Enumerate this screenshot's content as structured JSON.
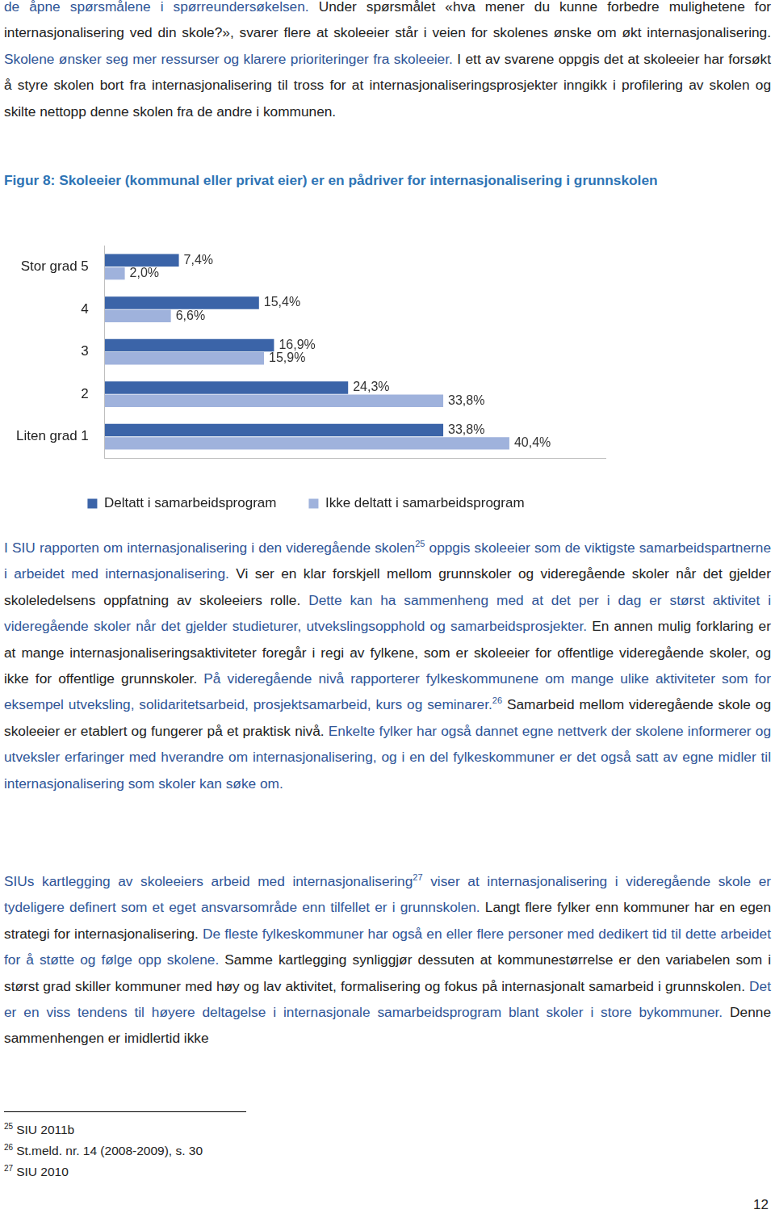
{
  "paragraphs_before": [
    [
      {
        "text": "de åpne spørsmålene i spørreundersøkelsen.",
        "color": "#2f5597"
      },
      {
        "text": " Under spørsmålet «hva mener du kunne forbedre mulighetene for internasjonalisering ved din skole?», svarer flere at skoleeier står i veien for skolenes ønske om økt internasjonalisering.",
        "color": "#222222"
      },
      {
        "text": " Skolene ønsker seg mer ressurser og klarere prioriteringer fra skoleeier.",
        "color": "#2f5597"
      },
      {
        "text": " I ett av svarene oppgis det at skoleeier har forsøkt å styre skolen bort fra internasjonalisering til tross for at internasjonaliseringsprosjekter inngikk i profilering av skolen og skilte nettopp denne skolen fra de andre i kommunen.",
        "color": "#222222"
      }
    ]
  ],
  "chart_data": {
    "type": "bar",
    "title": "Figur 8: Skoleeier (kommunal eller privat eier) er en pådriver for internasjonalisering i grunnskolen",
    "title_color": "#2e74b5",
    "orientation": "horizontal",
    "categories": [
      "Stor grad 5",
      "4",
      "3",
      "2",
      "Liten grad 1"
    ],
    "series": [
      {
        "name": "Deltatt i samarbeidsprogram",
        "color": "#3b64a8",
        "values": [
          7.4,
          15.4,
          16.9,
          24.3,
          33.8
        ],
        "value_labels": [
          "7,4%",
          "15,4%",
          "16,9%",
          "24,3%",
          "33,8%"
        ]
      },
      {
        "name": "Ikke deltatt i samarbeidsprogram",
        "color": "#9fb2dc",
        "values": [
          2.0,
          6.6,
          15.9,
          33.8,
          40.4
        ],
        "value_labels": [
          "2,0%",
          "6,6%",
          "15,9%",
          "33,8%",
          "40,4%"
        ]
      }
    ],
    "xlim": [
      0,
      50
    ],
    "xticks": [],
    "tick_labels": "y",
    "grid": false,
    "data_labels": true,
    "legend": "bottom"
  },
  "paragraphs_after": [
    [
      {
        "text": "I SIU rapporten om internasjonalisering i den videregående skolen",
        "color": "#2f5597"
      },
      {
        "sup": "25",
        "color": "#2f5597"
      },
      {
        "text": " oppgis skoleeier som de viktigste samarbeidspartnerne i arbeidet med internasjonalisering.",
        "color": "#2f5597"
      },
      {
        "text": " Vi ser en klar forskjell mellom grunnskoler og videregående skoler når det gjelder skoleledelsens oppfatning av skoleeiers rolle.",
        "color": "#222222"
      },
      {
        "text": " Dette kan ha sammenheng med at det per i dag er størst aktivitet i videregående skoler når det gjelder studieturer, utvekslingsopphold og samarbeidsprosjekter.",
        "color": "#2f5597"
      },
      {
        "text": " En annen mulig forklaring er at mange internasjonaliseringsaktiviteter foregår i regi av fylkene, som er skoleeier for offentlige videregående skoler, og ikke for offentlige grunnskoler.",
        "color": "#222222"
      },
      {
        "text": " På videregående nivå rapporterer fylkeskommunene om mange ulike aktiviteter som for eksempel utveksling, solidaritetsarbeid, prosjektsamarbeid, kurs og seminarer.",
        "color": "#2f5597"
      },
      {
        "sup": "26",
        "color": "#2f5597"
      },
      {
        "text": " Samarbeid mellom videregående skole og skoleeier er etablert og fungerer på et praktisk nivå.",
        "color": "#222222"
      },
      {
        "text": " Enkelte fylker har også dannet egne nettverk der skolene informerer og utveksler erfaringer med hverandre om internasjonalisering, og i en del fylkeskommuner er det også satt av egne midler til internasjonalisering som skoler kan søke om.",
        "color": "#2f5597"
      }
    ],
    [
      {
        "text": "SIUs kartlegging av skoleeiers arbeid med internasjonalisering",
        "color": "#2f5597"
      },
      {
        "sup": "27",
        "color": "#2f5597"
      },
      {
        "text": " viser at internasjonalisering i videregående skole er tydeligere definert som et eget ansvarsområde enn tilfellet er i grunnskolen.",
        "color": "#2f5597"
      },
      {
        "text": " Langt flere fylker enn kommuner har en egen strategi for internasjonalisering.",
        "color": "#222222"
      },
      {
        "text": " De fleste fylkeskommuner har også en eller flere personer med dedikert tid til dette arbeidet for å støtte og følge opp skolene.",
        "color": "#2f5597"
      },
      {
        "text": " Samme kartlegging synliggjør dessuten at kommunestørrelse er den variabelen som i størst grad skiller kommuner med høy og lav aktivitet, formalisering og fokus på internasjonalt samarbeid i grunnskolen.",
        "color": "#222222"
      },
      {
        "text": " Det er en viss tendens til høyere deltagelse i internasjonale samarbeidsprogram blant skoler i store bykommuner.",
        "color": "#2f5597"
      },
      {
        "text": " Denne sammenhengen er imidlertid ikke",
        "color": "#222222"
      }
    ]
  ],
  "footnotes": [
    {
      "number": "25",
      "text": "SIU 2011b"
    },
    {
      "number": "26",
      "text": "St.meld. nr. 14 (2008-2009), s. 30"
    },
    {
      "number": "27",
      "text": "SIU 2010"
    }
  ],
  "page_number": "12"
}
